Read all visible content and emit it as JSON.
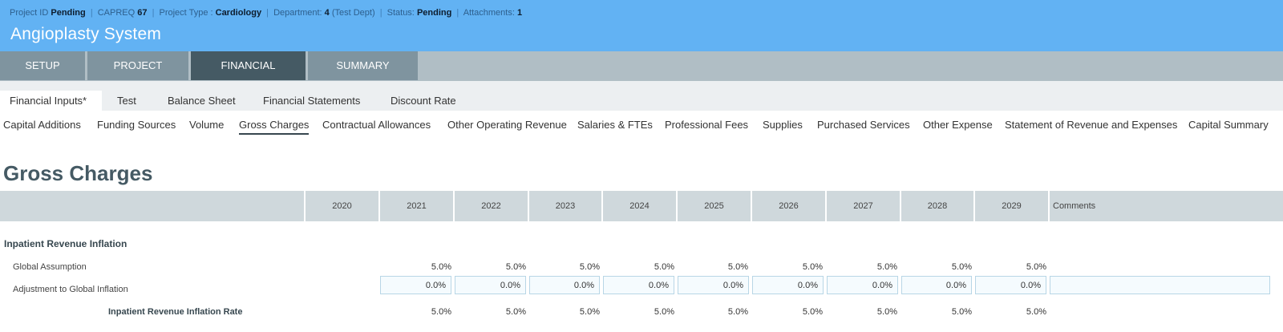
{
  "header": {
    "project_id_label": "Project ID",
    "project_id_value": "Pending",
    "capreq_label": "CAPREQ",
    "capreq_value": "67",
    "project_type_label": "Project Type :",
    "project_type_value": "Cardiology",
    "department_label": "Department:",
    "department_value": "4",
    "department_name": "(Test Dept)",
    "status_label": "Status:",
    "status_value": "Pending",
    "attachments_label": "Attachments:",
    "attachments_value": "1",
    "separator": "|",
    "title": "Angioplasty System"
  },
  "main_tabs": [
    {
      "label": "SETUP",
      "active": false
    },
    {
      "label": "PROJECT",
      "active": false
    },
    {
      "label": "FINANCIAL",
      "active": true
    },
    {
      "label": "SUMMARY",
      "active": false
    }
  ],
  "sub_tabs": [
    {
      "label": "Financial Inputs*",
      "active": true
    },
    {
      "label": "Test",
      "active": false
    },
    {
      "label": "Balance Sheet",
      "active": false
    },
    {
      "label": "Financial Statements",
      "active": false
    },
    {
      "label": "Discount Rate",
      "active": false
    }
  ],
  "section_links": [
    {
      "label": "Capital Additions",
      "active": false
    },
    {
      "label": "Funding Sources",
      "active": false
    },
    {
      "label": "Volume",
      "active": false
    },
    {
      "label": "Gross Charges",
      "active": true
    },
    {
      "label": "Contractual Allowances",
      "active": false
    },
    {
      "label": "Other Operating Revenue",
      "active": false
    },
    {
      "label": "Salaries & FTEs",
      "active": false
    },
    {
      "label": "Professional Fees",
      "active": false
    },
    {
      "label": "Supplies",
      "active": false
    },
    {
      "label": "Purchased Services",
      "active": false
    },
    {
      "label": "Other Expense",
      "active": false
    },
    {
      "label": "Statement of Revenue and Expenses",
      "active": false
    },
    {
      "label": "Capital Summary",
      "active": false
    }
  ],
  "page_title": "Gross Charges",
  "table": {
    "years": [
      "2020",
      "2021",
      "2022",
      "2023",
      "2024",
      "2025",
      "2026",
      "2027",
      "2028",
      "2029"
    ],
    "comments_header": "Comments",
    "group_title": "Inpatient Revenue Inflation",
    "rows": {
      "global_assumption": {
        "label": "Global Assumption",
        "values": [
          "5.0%",
          "5.0%",
          "5.0%",
          "5.0%",
          "5.0%",
          "5.0%",
          "5.0%",
          "5.0%",
          "5.0%"
        ]
      },
      "adjustment": {
        "label": "Adjustment to Global Inflation",
        "values": [
          "0.0%",
          "0.0%",
          "0.0%",
          "0.0%",
          "0.0%",
          "0.0%",
          "0.0%",
          "0.0%",
          "0.0%"
        ],
        "comment": ""
      },
      "rate": {
        "label": "Inpatient Revenue Inflation Rate",
        "values": [
          "5.0%",
          "5.0%",
          "5.0%",
          "5.0%",
          "5.0%",
          "5.0%",
          "5.0%",
          "5.0%",
          "5.0%"
        ]
      }
    }
  },
  "colors": {
    "header_bg": "#62b2f3",
    "tab_active": "#455a64",
    "tab_inactive": "#7f949f",
    "table_header_bg": "#cfd8dc"
  }
}
